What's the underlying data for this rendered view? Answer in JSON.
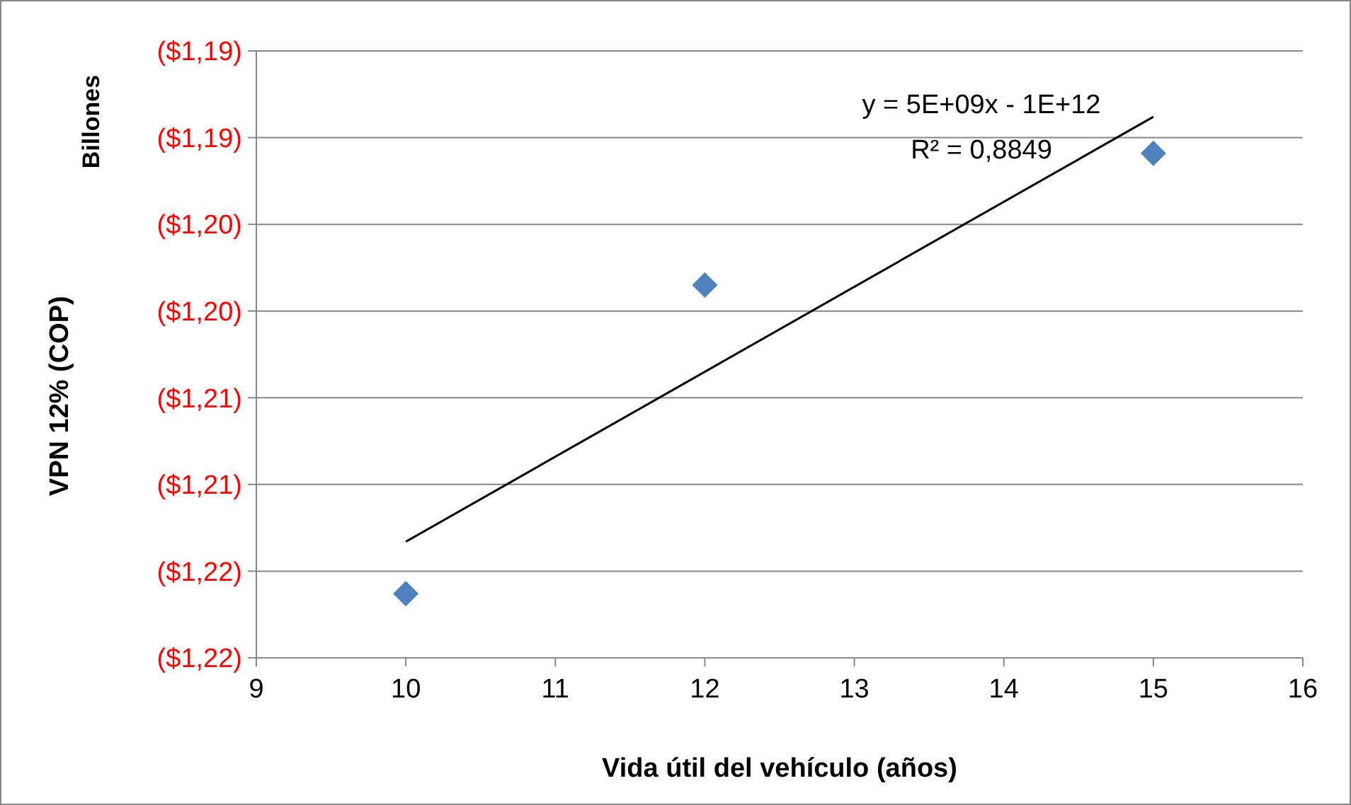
{
  "chart_data": {
    "type": "scatter",
    "xlabel": "Vida útil del vehículo (años)",
    "ylabel": "VPN 12% (COP)",
    "annotations": [
      "Billones",
      "y = 5E+09x - 1E+12",
      "R² = 0,8849"
    ],
    "x": [
      10,
      12,
      15
    ],
    "series": [
      {
        "color": "#4f81bd",
        "marker": "diamond",
        "values": [
          -1.2163,
          -1.1985,
          -1.1909
        ]
      },
      {
        "type": "line",
        "color": "#000000",
        "marker": "none",
        "line_style": "solid",
        "x": [
          10,
          15
        ],
        "values": [
          -1.2133,
          -1.1888
        ]
      }
    ],
    "xlim": [
      9,
      16
    ],
    "xticks": [
      9,
      10,
      11,
      12,
      13,
      14,
      15,
      16
    ],
    "ylim": [
      -1.22,
      -1.185
    ],
    "yticks": [
      {
        "value": -1.22,
        "label": "($1,22)"
      },
      {
        "value": -1.215,
        "label": "($1,22)"
      },
      {
        "value": -1.21,
        "label": "($1,21)"
      },
      {
        "value": -1.205,
        "label": "($1,21)"
      },
      {
        "value": -1.2,
        "label": "($1,20)"
      },
      {
        "value": -1.195,
        "label": "($1,20)"
      },
      {
        "value": -1.19,
        "label": "($1,19)"
      },
      {
        "value": -1.185,
        "label": "($1,19)"
      }
    ],
    "grid": "y"
  }
}
